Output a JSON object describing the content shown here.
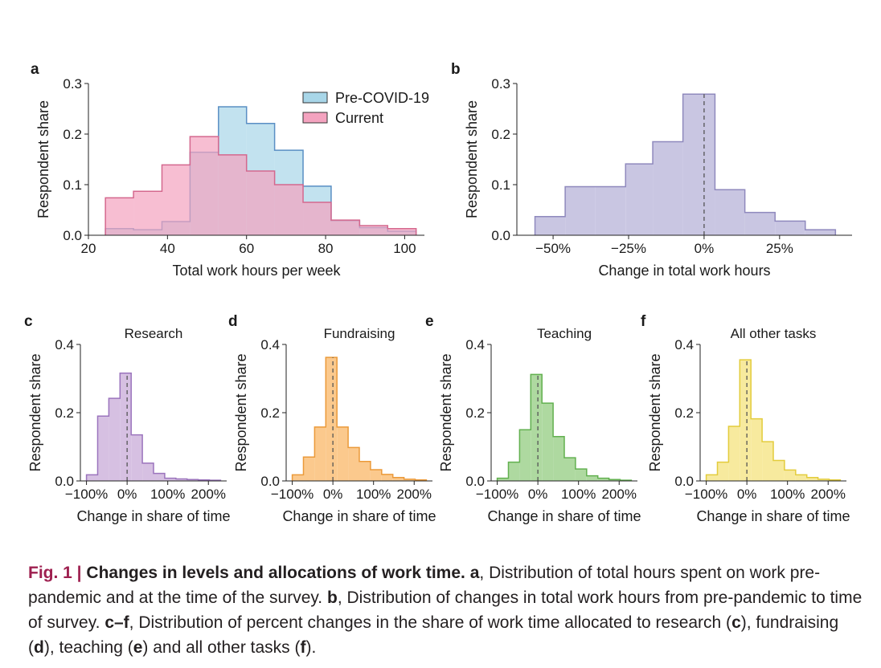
{
  "chart_data": [
    {
      "panel": "a",
      "type": "histogram",
      "title": "",
      "xlabel": "Total work hours per week",
      "ylabel": "Respondent share",
      "xlim": [
        20,
        105
      ],
      "ylim": [
        0,
        0.3
      ],
      "xticks": [
        20,
        40,
        60,
        80,
        100
      ],
      "xtick_labels": [
        "20",
        "40",
        "60",
        "80",
        "100"
      ],
      "yticks": [
        0,
        0.1,
        0.2,
        0.3
      ],
      "ytick_labels": [
        "0.0",
        "0.1",
        "0.2",
        "0.3"
      ],
      "legend_position": "top-right",
      "bin_edges": [
        24.3,
        31.4,
        38.6,
        45.7,
        52.9,
        60,
        67.1,
        74.3,
        81.4,
        88.6,
        95.7,
        102.9
      ],
      "series": [
        {
          "name": "Pre-COVID-19",
          "color": "#a8d6e8",
          "line": "#5a8fc4",
          "alpha": 0.7,
          "values": [
            0.013,
            0.011,
            0.027,
            0.164,
            0.254,
            0.221,
            0.168,
            0.097,
            0.029,
            0.015,
            0.008
          ]
        },
        {
          "name": "Current",
          "color": "#f4a3bf",
          "line": "#d4688e",
          "alpha": 0.7,
          "values": [
            0.074,
            0.087,
            0.139,
            0.195,
            0.159,
            0.127,
            0.1,
            0.065,
            0.03,
            0.019,
            0.013
          ]
        }
      ]
    },
    {
      "panel": "b",
      "type": "histogram",
      "title": "",
      "xlabel": "Change in total work hours",
      "ylabel": "Respondent share",
      "xlim": [
        -0.62,
        0.49
      ],
      "ylim": [
        0,
        0.3
      ],
      "xticks": [
        -0.5,
        -0.25,
        0,
        0.25
      ],
      "xtick_labels": [
        "−50%",
        "−25%",
        "0%",
        "25%"
      ],
      "yticks": [
        0,
        0.1,
        0.2,
        0.3
      ],
      "ytick_labels": [
        "0.0",
        "0.1",
        "0.2",
        "0.3"
      ],
      "bin_edges": [
        -0.56,
        -0.46,
        -0.36,
        -0.26,
        -0.17,
        -0.07,
        0.036,
        0.135,
        0.235,
        0.335,
        0.435
      ],
      "series": [
        {
          "name": "",
          "color": "#c9c6e2",
          "line": "#8f89bd",
          "alpha": 1,
          "values": [
            0.037,
            0.096,
            0.096,
            0.141,
            0.185,
            0.279,
            0.09,
            0.045,
            0.028,
            0.011
          ]
        }
      ],
      "ref_line": 0
    },
    {
      "panel": "c",
      "type": "histogram",
      "title": "Research",
      "xlabel": "Change in share of time",
      "ylabel": "Respondent share",
      "xlim": [
        -1.15,
        2.45
      ],
      "ylim": [
        0,
        0.4
      ],
      "xticks": [
        -1,
        0,
        1,
        2
      ],
      "xtick_labels": [
        "−100%",
        "0%",
        "100%",
        "200%"
      ],
      "yticks": [
        0,
        0.2,
        0.4
      ],
      "ytick_labels": [
        "0.0",
        "0.2",
        "0.4"
      ],
      "bin_edges": [
        -1,
        -0.725,
        -0.45,
        -0.175,
        0.1,
        0.375,
        0.65,
        0.925,
        1.2,
        1.475,
        1.75,
        2.025,
        2.3
      ],
      "series": [
        {
          "name": "",
          "color": "#d6c0e2",
          "line": "#9b74bd",
          "alpha": 1,
          "values": [
            0.018,
            0.19,
            0.242,
            0.316,
            0.135,
            0.052,
            0.022,
            0.008,
            0.006,
            0.004,
            0.003,
            0.002
          ]
        }
      ],
      "ref_line": 0
    },
    {
      "panel": "d",
      "type": "histogram",
      "title": "Fundraising",
      "xlabel": "Change in share of time",
      "ylabel": "Respondent share",
      "xlim": [
        -1.15,
        2.45
      ],
      "ylim": [
        0,
        0.4
      ],
      "xticks": [
        -1,
        0,
        1,
        2
      ],
      "xtick_labels": [
        "−100%",
        "0%",
        "100%",
        "200%"
      ],
      "yticks": [
        0,
        0.2,
        0.4
      ],
      "ytick_labels": [
        "0.0",
        "0.2",
        "0.4"
      ],
      "bin_edges": [
        -1,
        -0.725,
        -0.45,
        -0.175,
        0.1,
        0.375,
        0.65,
        0.925,
        1.2,
        1.475,
        1.75,
        2.025,
        2.3
      ],
      "series": [
        {
          "name": "",
          "color": "#fbc98d",
          "line": "#eb9a3a",
          "alpha": 1,
          "values": [
            0.018,
            0.07,
            0.158,
            0.362,
            0.158,
            0.098,
            0.057,
            0.033,
            0.019,
            0.01,
            0.005,
            0.003
          ]
        }
      ],
      "ref_line": 0
    },
    {
      "panel": "e",
      "type": "histogram",
      "title": "Teaching",
      "xlabel": "Change in share of time",
      "ylabel": "Respondent share",
      "xlim": [
        -1.15,
        2.45
      ],
      "ylim": [
        0,
        0.4
      ],
      "xticks": [
        -1,
        0,
        1,
        2
      ],
      "xtick_labels": [
        "−100%",
        "0%",
        "100%",
        "200%"
      ],
      "yticks": [
        0,
        0.2,
        0.4
      ],
      "ytick_labels": [
        "0.0",
        "0.2",
        "0.4"
      ],
      "bin_edges": [
        -1,
        -0.725,
        -0.45,
        -0.175,
        0.1,
        0.375,
        0.65,
        0.925,
        1.2,
        1.475,
        1.75,
        2.025,
        2.3
      ],
      "series": [
        {
          "name": "",
          "color": "#aed9a0",
          "line": "#62b04f",
          "alpha": 1,
          "values": [
            0.008,
            0.055,
            0.15,
            0.312,
            0.228,
            0.13,
            0.068,
            0.035,
            0.015,
            0.008,
            0.004,
            0.002
          ]
        }
      ],
      "ref_line": 0
    },
    {
      "panel": "f",
      "type": "histogram",
      "title": "All other tasks",
      "xlabel": "Change in share of time",
      "ylabel": "Respondent share",
      "xlim": [
        -1.15,
        2.45
      ],
      "ylim": [
        0,
        0.4
      ],
      "xticks": [
        -1,
        0,
        1,
        2
      ],
      "xtick_labels": [
        "−100%",
        "0%",
        "100%",
        "200%"
      ],
      "yticks": [
        0,
        0.2,
        0.4
      ],
      "ytick_labels": [
        "0.0",
        "0.2",
        "0.4"
      ],
      "bin_edges": [
        -1,
        -0.725,
        -0.45,
        -0.175,
        0.1,
        0.375,
        0.65,
        0.925,
        1.2,
        1.475,
        1.75,
        2.025,
        2.3
      ],
      "series": [
        {
          "name": "",
          "color": "#f7ea9e",
          "line": "#e3cc3c",
          "alpha": 1,
          "values": [
            0.018,
            0.055,
            0.16,
            0.355,
            0.182,
            0.115,
            0.06,
            0.032,
            0.018,
            0.01,
            0.005,
            0.003
          ]
        }
      ],
      "ref_line": 0
    }
  ],
  "caption": {
    "fig_label": "Fig. 1 |",
    "title": "Changes in levels and allocations of work time.",
    "label_a": "a",
    "text_a": ", Distribution of total hours spent on work pre-pandemic and at the time of the survey. ",
    "label_b": "b",
    "text_b": ", Distribution of changes in total work hours from pre-pandemic to time of survey. ",
    "label_cf": "c–f",
    "text_cf": ", Distribution of percent changes in the share of work time allocated to research (",
    "label_c": "c",
    "text_c": "), fundraising (",
    "label_d": "d",
    "text_d": "), teaching (",
    "label_e": "e",
    "text_e": ") and all other tasks (",
    "label_f": "f",
    "text_f": ")."
  }
}
